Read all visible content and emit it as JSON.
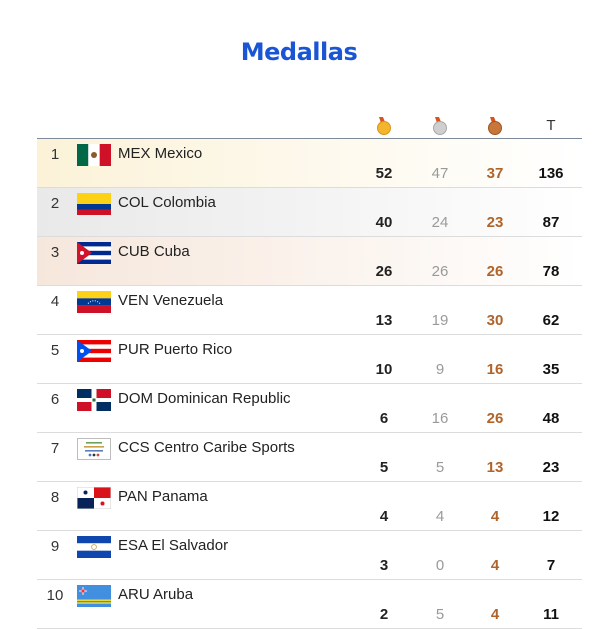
{
  "title": "Medallas",
  "columns": {
    "gold_icon": "gold-medal-icon",
    "silver_icon": "silver-medal-icon",
    "bronze_icon": "bronze-medal-icon",
    "total_label": "T"
  },
  "colors": {
    "title": "#1a55d6",
    "gold": "#e6a21e",
    "silver": "#b8b8b8",
    "bronze": "#b0642a"
  },
  "rows": [
    {
      "rank": "1",
      "country": "MEX Mexico",
      "gold": "52",
      "silver": "47",
      "bronze": "37",
      "total": "136"
    },
    {
      "rank": "2",
      "country": "COL Colombia",
      "gold": "40",
      "silver": "24",
      "bronze": "23",
      "total": "87"
    },
    {
      "rank": "3",
      "country": "CUB Cuba",
      "gold": "26",
      "silver": "26",
      "bronze": "26",
      "total": "78"
    },
    {
      "rank": "4",
      "country": "VEN Venezuela",
      "gold": "13",
      "silver": "19",
      "bronze": "30",
      "total": "62"
    },
    {
      "rank": "5",
      "country": "PUR Puerto Rico",
      "gold": "10",
      "silver": "9",
      "bronze": "16",
      "total": "35"
    },
    {
      "rank": "6",
      "country": "DOM Dominican Republic",
      "gold": "6",
      "silver": "16",
      "bronze": "26",
      "total": "48"
    },
    {
      "rank": "7",
      "country": "CCS Centro Caribe Sports",
      "gold": "5",
      "silver": "5",
      "bronze": "13",
      "total": "23"
    },
    {
      "rank": "8",
      "country": "PAN Panama",
      "gold": "4",
      "silver": "4",
      "bronze": "4",
      "total": "12"
    },
    {
      "rank": "9",
      "country": "ESA El Salvador",
      "gold": "3",
      "silver": "0",
      "bronze": "4",
      "total": "7"
    },
    {
      "rank": "10",
      "country": "ARU Aruba",
      "gold": "2",
      "silver": "5",
      "bronze": "4",
      "total": "11"
    }
  ]
}
